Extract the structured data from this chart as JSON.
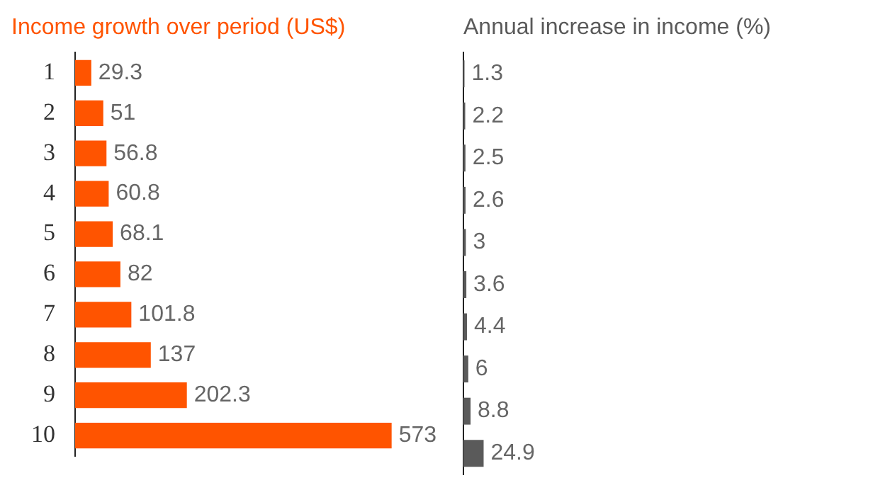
{
  "chart_data": [
    {
      "type": "bar",
      "orientation": "horizontal",
      "title": "Income growth over period (US$)",
      "categories": [
        "1",
        "2",
        "3",
        "4",
        "5",
        "6",
        "7",
        "8",
        "9",
        "10"
      ],
      "values": [
        29.3,
        51,
        56.8,
        60.8,
        68.1,
        82,
        101.8,
        137,
        202.3,
        573
      ],
      "color": "#ff5400",
      "data_labels": true,
      "grid": false,
      "tick_labels": "y"
    },
    {
      "type": "bar",
      "orientation": "horizontal",
      "title": "Annual increase in income (%)",
      "categories": [
        "1",
        "2",
        "3",
        "4",
        "5",
        "6",
        "7",
        "8",
        "9",
        "10"
      ],
      "values": [
        1.3,
        2.2,
        2.5,
        2.6,
        3,
        3.6,
        4.4,
        6,
        8.8,
        24.9
      ],
      "color": "#5a5a5a",
      "data_labels": true,
      "grid": false,
      "tick_labels": false
    }
  ]
}
